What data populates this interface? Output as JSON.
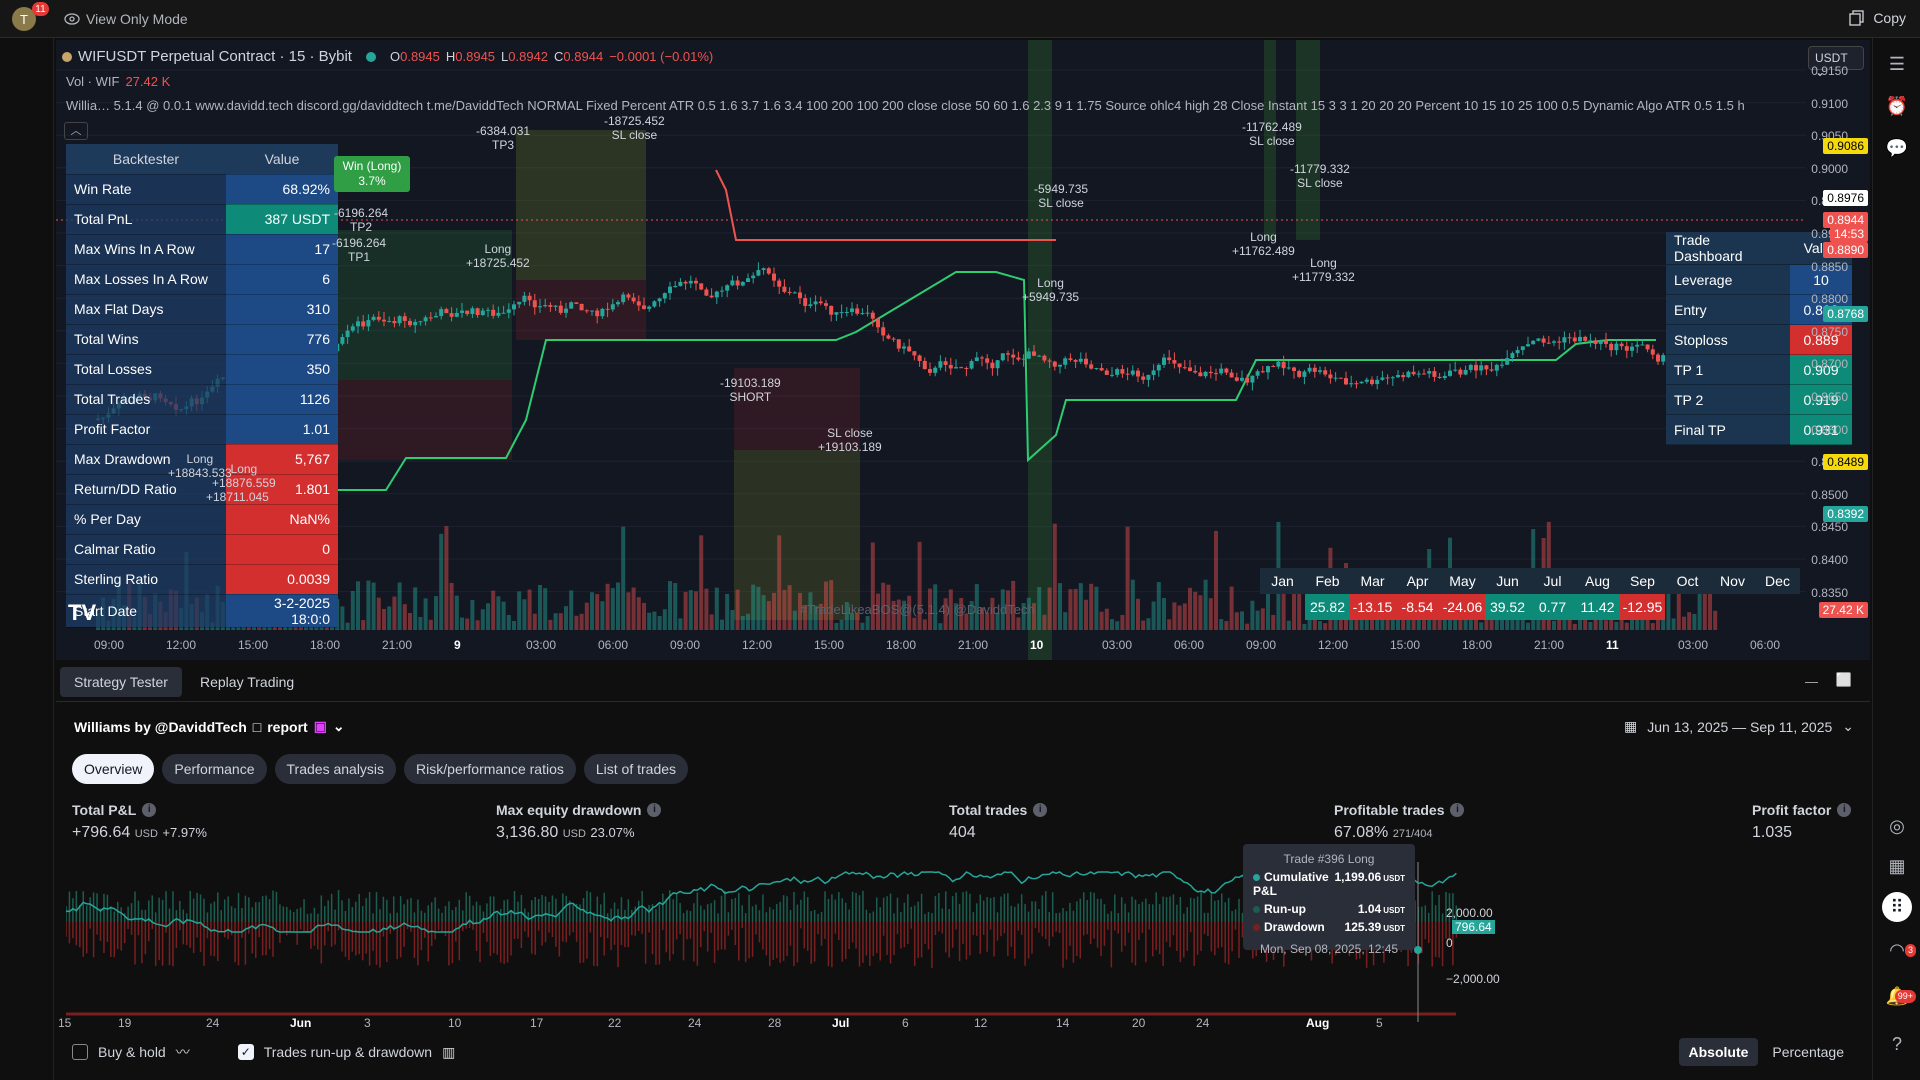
{
  "topbar": {
    "avatar_letter": "T",
    "avatar_badge": "11",
    "view_mode": "View Only Mode",
    "copy": "Copy"
  },
  "chart": {
    "symbol": "WIFUSDT Perpetual Contract · 15 · Bybit",
    "ohlc": {
      "o_label": "O",
      "o": "0.8945",
      "h_label": "H",
      "h": "0.8945",
      "l_label": "L",
      "l": "0.8942",
      "c_label": "C",
      "c": "0.8944",
      "change": "−0.0001 (−0.01%)"
    },
    "vol_label": "Vol · WIF",
    "vol_value": "27.42 K",
    "indicator": "Willia…   5.1.4 @ 0.0.1 www.davidd.tech discord.gg/daviddtech t.me/DaviddTech NORMAL Fixed Percent ATR 0.5 1.6 3.7 1.6 3.4 100 200 100 200 close close 50 60 1.6 2.3 9 1 1.75 Source ohlc4 high 28 Close Instant 15 3 3 1 20 20 20 Percent 10 15 10 25 100 0.5 Dynamic Algo ATR 0.5 1.5 h",
    "currency": "USDT",
    "win_box": "Win (Long)\n3.7%",
    "watermark": "#TradeLikeaBOS@(5.1.4) @DaviddTech",
    "tv_logo": "TV",
    "backtester": {
      "header": [
        "Backtester",
        "Value"
      ],
      "rows": [
        {
          "k": "Win Rate",
          "v": "68.92%",
          "c": "blue"
        },
        {
          "k": "Total PnL",
          "v": "387 USDT",
          "c": "teal"
        },
        {
          "k": "Max Wins In A Row",
          "v": "17",
          "c": "blue"
        },
        {
          "k": "Max Losses In A Row",
          "v": "6",
          "c": "blue"
        },
        {
          "k": "Max Flat Days",
          "v": "310",
          "c": "blue"
        },
        {
          "k": "Total Wins",
          "v": "776",
          "c": "blue"
        },
        {
          "k": "Total Losses",
          "v": "350",
          "c": "blue"
        },
        {
          "k": "Total Trades",
          "v": "1126",
          "c": "blue"
        },
        {
          "k": "Profit Factor",
          "v": "1.01",
          "c": "blue"
        },
        {
          "k": "Max Drawdown",
          "v": "5,767",
          "c": "red"
        },
        {
          "k": "Return/DD Ratio",
          "v": "1.801",
          "c": "red"
        },
        {
          "k": "% Per Day",
          "v": "NaN%",
          "c": "red"
        },
        {
          "k": "Calmar Ratio",
          "v": "0",
          "c": "red"
        },
        {
          "k": "Sterling Ratio",
          "v": "0.0039",
          "c": "red"
        },
        {
          "k": "Start Date",
          "v": "3-2-2025 18:0:0",
          "c": "blue"
        }
      ]
    },
    "trade_dashboard": {
      "header": [
        "Trade Dashboard",
        "Value"
      ],
      "rows": [
        {
          "k": "Leverage",
          "v": "10",
          "c": "blue"
        },
        {
          "k": "Entry",
          "v": "0.898",
          "c": "blue"
        },
        {
          "k": "Stoploss",
          "v": "0.889",
          "c": "red"
        },
        {
          "k": "TP 1",
          "v": "0.909",
          "c": "teal"
        },
        {
          "k": "TP 2",
          "v": "0.919",
          "c": "teal"
        },
        {
          "k": "Final TP",
          "v": "0.931",
          "c": "teal"
        }
      ]
    },
    "monthly": {
      "months": [
        "Jan",
        "Feb",
        "Mar",
        "Apr",
        "May",
        "Jun",
        "Jul",
        "Aug",
        "Sep",
        "Oct",
        "Nov",
        "Dec"
      ],
      "values": [
        "",
        "25.82",
        "-13.15",
        "-8.54",
        "-24.06",
        "39.52",
        "0.77",
        "11.42",
        "-12.95",
        "",
        "",
        ""
      ]
    },
    "price_axis": [
      "0.9150",
      "0.9100",
      "0.9050",
      "0.9000",
      "0.8950",
      "0.8900",
      "0.8850",
      "0.8800",
      "0.8750",
      "0.8700",
      "0.8650",
      "0.8600",
      "0.8550",
      "0.8500",
      "0.8450",
      "0.8400",
      "0.8350"
    ],
    "price_badges": [
      {
        "v": "0.9086",
        "color": "#f5d90a"
      },
      {
        "v": "0.8976",
        "color": "#ffffff"
      },
      {
        "v": "0.8944",
        "color": "#ef5350"
      },
      {
        "v": "14:53",
        "color": "#ef5350"
      },
      {
        "v": "0.8890",
        "color": "#ef5350"
      },
      {
        "v": "0.8768",
        "color": "#26a69a"
      },
      {
        "v": "0.8489",
        "color": "#f5d90a"
      },
      {
        "v": "0.8392",
        "color": "#26a69a"
      },
      {
        "v": "27.42 K",
        "color": "#ef5350"
      }
    ],
    "time_axis": [
      "09:00",
      "12:00",
      "15:00",
      "18:00",
      "21:00",
      "9",
      "03:00",
      "06:00",
      "09:00",
      "12:00",
      "15:00",
      "18:00",
      "21:00",
      "10",
      "03:00",
      "06:00",
      "09:00",
      "12:00",
      "15:00",
      "18:00",
      "21:00",
      "11",
      "03:00",
      "06:00"
    ],
    "annotations": [
      {
        "t": "-6384.031\nTP3"
      },
      {
        "t": "-18725.452\nSL close"
      },
      {
        "t": "-6196.264\nTP2"
      },
      {
        "t": "-6196.264\nTP1"
      },
      {
        "t": "Long\n+18725.452"
      },
      {
        "t": "-5949.735\nSL close"
      },
      {
        "t": "Long\n+5949.735"
      },
      {
        "t": "-11762.489\nSL close"
      },
      {
        "t": "-11779.332\nSL close"
      },
      {
        "t": "Long\n+11762.489"
      },
      {
        "t": "Long\n+11779.332"
      },
      {
        "t": "-19103.189\nSHORT"
      },
      {
        "t": "SL close\n+19103.189"
      },
      {
        "t": "Long\n+18843.533"
      },
      {
        "t": "Long\n+18876.559"
      },
      {
        "t": "+18711.045"
      }
    ]
  },
  "panel": {
    "tabs": [
      "Strategy Tester",
      "Replay Trading"
    ],
    "strategy": "Williams by @DaviddTech",
    "report": "report",
    "date_range": "Jun 13, 2025 — Sep 11, 2025",
    "subtabs": [
      "Overview",
      "Performance",
      "Trades analysis",
      "Risk/performance ratios",
      "List of trades"
    ],
    "metrics": [
      {
        "label": "Total P&L",
        "value": "+796.64",
        "unit": "USD",
        "extra": "+7.97%"
      },
      {
        "label": "Max equity drawdown",
        "value": "3,136.80",
        "unit": "USD",
        "extra": "23.07%"
      },
      {
        "label": "Total trades",
        "value": "404",
        "unit": "",
        "extra": ""
      },
      {
        "label": "Profitable trades",
        "value": "67.08%",
        "unit": "",
        "extra": "271/404"
      },
      {
        "label": "Profit factor",
        "value": "1.035",
        "unit": "",
        "extra": ""
      }
    ],
    "tooltip": {
      "title": "Trade #396 Long",
      "rows": [
        {
          "k": "Cumulative P&L",
          "v": "1,199.06",
          "u": "USDT",
          "c": "#26a69a"
        },
        {
          "k": "Run-up",
          "v": "1.04",
          "u": "USDT",
          "c": "#1b5e4f"
        },
        {
          "k": "Drawdown",
          "v": "125.39",
          "u": "USDT",
          "c": "#7a1f1f"
        }
      ],
      "date": "Mon, Sep 08, 2025, 12:45"
    },
    "equity_axis": [
      "2,000.00",
      "796.64",
      "0",
      "−2,000.00"
    ],
    "equity_x": [
      "15",
      "19",
      "24",
      "Jun",
      "3",
      "10",
      "17",
      "22",
      "24",
      "28",
      "Jul",
      "6",
      "12",
      "14",
      "20",
      "24",
      "Aug",
      "5"
    ],
    "buy_hold": "Buy & hold",
    "runup": "Trades run-up & drawdown",
    "toggle": [
      "Absolute",
      "Percentage"
    ]
  },
  "rightrail": {
    "badge1": "3",
    "badge2": "99+"
  }
}
